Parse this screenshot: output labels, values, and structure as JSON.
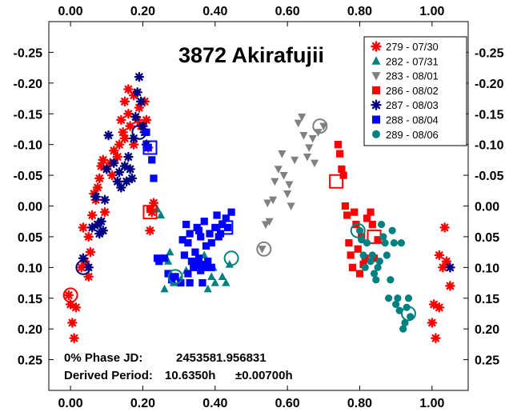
{
  "chart_data": {
    "type": "scatter",
    "title": "3872 Akirafujii",
    "xlabel": "",
    "ylabel": "",
    "xlim": [
      -0.06,
      1.1
    ],
    "ylim": [
      -0.3,
      0.3
    ],
    "y_inverted": true,
    "x_ticks": [
      "0.00",
      "0.20",
      "0.40",
      "0.60",
      "0.80",
      "1.00"
    ],
    "x_tick_values": [
      0.0,
      0.2,
      0.4,
      0.6,
      0.8,
      1.0
    ],
    "y_ticks": [
      "-0.25",
      "-0.20",
      "-0.15",
      "-0.10",
      "-0.05",
      "0.00",
      "0.05",
      "0.10",
      "0.15",
      "0.20",
      "0.25"
    ],
    "y_tick_values": [
      -0.25,
      -0.2,
      -0.15,
      -0.1,
      -0.05,
      0.0,
      0.05,
      0.1,
      0.15,
      0.2,
      0.25
    ],
    "grid": false,
    "legend_position": "top-right",
    "annotations": {
      "phase_label": "0% Phase JD:",
      "phase_value": "2453581.956831",
      "period_label": "Derived Period:",
      "period_value": "10.6350h",
      "period_error": "±0.00700h"
    },
    "series": [
      {
        "name": "279 - 07/30",
        "color": "#ff0000",
        "marker": "asterisk",
        "points": [
          [
            -0.005,
            0.145
          ],
          [
            0.0,
            0.16
          ],
          [
            0.005,
            0.19
          ],
          [
            0.01,
            0.215
          ],
          [
            0.015,
            0.165
          ],
          [
            0.03,
            0.1
          ],
          [
            0.035,
            0.035
          ],
          [
            0.04,
            0.09
          ],
          [
            0.05,
            0.05
          ],
          [
            0.05,
            0.115
          ],
          [
            0.055,
            0.075
          ],
          [
            0.06,
            0.015
          ],
          [
            0.065,
            -0.02
          ],
          [
            0.07,
            -0.01
          ],
          [
            0.075,
            -0.03
          ],
          [
            0.08,
            -0.045
          ],
          [
            0.085,
            -0.065
          ],
          [
            0.09,
            -0.075
          ],
          [
            0.095,
            0.01
          ],
          [
            0.1,
            -0.06
          ],
          [
            0.11,
            -0.07
          ],
          [
            0.115,
            -0.05
          ],
          [
            0.12,
            -0.09
          ],
          [
            0.13,
            -0.08
          ],
          [
            0.135,
            -0.1
          ],
          [
            0.14,
            -0.14
          ],
          [
            0.145,
            -0.12
          ],
          [
            0.15,
            -0.17
          ],
          [
            0.15,
            -0.11
          ],
          [
            0.16,
            -0.19
          ],
          [
            0.16,
            -0.15
          ],
          [
            0.165,
            -0.13
          ],
          [
            0.175,
            -0.18
          ],
          [
            0.175,
            -0.1
          ],
          [
            0.185,
            -0.14
          ],
          [
            0.19,
            -0.16
          ],
          [
            0.195,
            -0.13
          ],
          [
            0.205,
            -0.17
          ],
          [
            0.21,
            -0.14
          ],
          [
            0.215,
            -0.095
          ],
          [
            0.22,
            0.04
          ],
          [
            0.225,
            0.01
          ],
          [
            0.23,
            -0.005
          ],
          [
            1.0,
            0.19
          ],
          [
            1.005,
            0.16
          ],
          [
            1.01,
            0.215
          ],
          [
            1.02,
            0.165
          ],
          [
            1.02,
            0.08
          ],
          [
            1.03,
            0.1
          ],
          [
            1.035,
            0.035
          ],
          [
            1.04,
            0.09
          ],
          [
            1.05,
            0.13
          ]
        ],
        "highlight": [
          [
            0.0,
            0.145
          ]
        ]
      },
      {
        "name": "282 - 07/31",
        "color": "#008080",
        "marker": "triangle",
        "points": [
          [
            0.24,
            0.005
          ],
          [
            0.25,
            0.015
          ],
          [
            0.255,
            0.085
          ],
          [
            0.26,
            0.135
          ],
          [
            0.27,
            0.09
          ],
          [
            0.275,
            0.075
          ],
          [
            0.28,
            0.12
          ],
          [
            0.285,
            0.125
          ],
          [
            0.29,
            0.115
          ],
          [
            0.305,
            0.12
          ],
          [
            0.32,
            0.105
          ],
          [
            0.37,
            0.08
          ],
          [
            0.38,
            0.135
          ],
          [
            0.39,
            0.115
          ],
          [
            0.395,
            0.1
          ],
          [
            0.4,
            0.125
          ],
          [
            0.42,
            0.115
          ],
          [
            0.43,
            0.125
          ],
          [
            0.44,
            0.095
          ]
        ],
        "highlight": [
          [
            0.445,
            0.085
          ]
        ]
      },
      {
        "name": "283 - 08/01",
        "color": "#808080",
        "marker": "triangle-down",
        "points": [
          [
            0.53,
            0.07
          ],
          [
            0.54,
            0.03
          ],
          [
            0.545,
            -0.005
          ],
          [
            0.55,
            0.025
          ],
          [
            0.56,
            -0.01
          ],
          [
            0.565,
            -0.04
          ],
          [
            0.575,
            -0.06
          ],
          [
            0.585,
            -0.085
          ],
          [
            0.59,
            -0.05
          ],
          [
            0.6,
            -0.02
          ],
          [
            0.605,
            -0.035
          ],
          [
            0.61,
            0.0
          ],
          [
            0.62,
            -0.075
          ],
          [
            0.63,
            -0.135
          ],
          [
            0.64,
            -0.145
          ],
          [
            0.645,
            -0.115
          ],
          [
            0.655,
            -0.08
          ],
          [
            0.66,
            -0.095
          ],
          [
            0.67,
            -0.11
          ],
          [
            0.675,
            -0.07
          ],
          [
            0.685,
            -0.12
          ],
          [
            0.7,
            -0.13
          ]
        ],
        "highlight": [
          [
            0.535,
            0.07
          ],
          [
            0.69,
            -0.13
          ]
        ]
      },
      {
        "name": "286 - 08/02",
        "color": "#ff0000",
        "marker": "square",
        "points": [
          [
            0.22,
            0.005
          ],
          [
            0.74,
            -0.1
          ],
          [
            0.745,
            -0.085
          ],
          [
            0.75,
            -0.06
          ],
          [
            0.755,
            -0.05
          ],
          [
            0.76,
            0.0
          ],
          [
            0.765,
            0.015
          ],
          [
            0.77,
            0.06
          ],
          [
            0.775,
            0.08
          ],
          [
            0.78,
            0.1
          ],
          [
            0.785,
            0.01
          ],
          [
            0.79,
            0.03
          ],
          [
            0.795,
            0.07
          ],
          [
            0.8,
            0.11
          ],
          [
            0.805,
            0.05
          ],
          [
            0.81,
            0.095
          ],
          [
            0.815,
            0.085
          ],
          [
            0.82,
            0.02
          ],
          [
            0.83,
            0.01
          ],
          [
            0.835,
            0.03
          ],
          [
            0.84,
            0.085
          ],
          [
            0.85,
            0.055
          ]
        ],
        "highlight": [
          [
            0.22,
            0.01
          ],
          [
            0.735,
            -0.04
          ],
          [
            0.84,
            0.05
          ]
        ]
      },
      {
        "name": "287 - 08/03",
        "color": "#000080",
        "marker": "asterisk",
        "points": [
          [
            0.035,
            0.085
          ],
          [
            0.05,
            0.1
          ],
          [
            0.06,
            0.035
          ],
          [
            0.07,
            -0.015
          ],
          [
            0.075,
            0.03
          ],
          [
            0.08,
            0.045
          ],
          [
            0.085,
            0.025
          ],
          [
            0.09,
            0.04
          ],
          [
            0.095,
            -0.01
          ],
          [
            0.1,
            -0.06
          ],
          [
            0.105,
            -0.115
          ],
          [
            0.12,
            -0.07
          ],
          [
            0.13,
            -0.04
          ],
          [
            0.135,
            -0.055
          ],
          [
            0.14,
            -0.03
          ],
          [
            0.15,
            -0.065
          ],
          [
            0.155,
            -0.04
          ],
          [
            0.16,
            -0.08
          ],
          [
            0.165,
            -0.06
          ],
          [
            0.17,
            -0.045
          ],
          [
            0.175,
            -0.11
          ],
          [
            0.18,
            -0.145
          ],
          [
            0.185,
            -0.185
          ],
          [
            0.19,
            -0.21
          ],
          [
            0.195,
            -0.17
          ],
          [
            0.2,
            -0.13
          ],
          [
            0.205,
            -0.12
          ],
          [
            0.21,
            -0.1
          ],
          [
            1.05,
            0.1
          ]
        ],
        "highlight": [
          [
            0.035,
            0.1
          ],
          [
            0.19,
            -0.12
          ]
        ]
      },
      {
        "name": "288 - 08/04",
        "color": "#0000ff",
        "marker": "square",
        "points": [
          [
            0.21,
            -0.12
          ],
          [
            0.215,
            -0.095
          ],
          [
            0.225,
            -0.075
          ],
          [
            0.23,
            -0.045
          ],
          [
            0.26,
            0.085
          ],
          [
            0.27,
            0.11
          ],
          [
            0.28,
            0.12
          ],
          [
            0.29,
            0.115
          ],
          [
            0.305,
            0.125
          ],
          [
            0.315,
            0.08
          ],
          [
            0.325,
            0.11
          ],
          [
            0.33,
            0.125
          ],
          [
            0.335,
            0.09
          ],
          [
            0.34,
            0.1
          ],
          [
            0.35,
            0.095
          ],
          [
            0.355,
            0.085
          ],
          [
            0.36,
            0.105
          ],
          [
            0.365,
            0.125
          ],
          [
            0.37,
            0.095
          ],
          [
            0.375,
            0.1
          ],
          [
            0.38,
            0.09
          ],
          [
            0.39,
            0.1
          ],
          [
            0.31,
            0.055
          ],
          [
            0.32,
            0.03
          ],
          [
            0.325,
            0.06
          ],
          [
            0.33,
            0.045
          ],
          [
            0.345,
            0.075
          ],
          [
            0.35,
            0.035
          ],
          [
            0.355,
            0.04
          ],
          [
            0.36,
            0.05
          ],
          [
            0.37,
            0.025
          ],
          [
            0.375,
            0.065
          ],
          [
            0.385,
            0.045
          ],
          [
            0.39,
            0.06
          ],
          [
            0.4,
            0.035
          ],
          [
            0.405,
            0.015
          ],
          [
            0.41,
            0.05
          ],
          [
            0.415,
            0.045
          ],
          [
            0.42,
            0.03
          ],
          [
            0.43,
            0.02
          ],
          [
            0.435,
            0.035
          ],
          [
            0.445,
            0.01
          ],
          [
            0.24,
            0.085
          ],
          [
            0.245,
            0.09
          ]
        ],
        "highlight": [
          [
            0.22,
            -0.095
          ],
          [
            0.43,
            0.035
          ]
        ]
      },
      {
        "name": "289 - 08/06",
        "color": "#008080",
        "marker": "circle",
        "points": [
          [
            0.8,
            0.04
          ],
          [
            0.805,
            0.055
          ],
          [
            0.81,
            0.08
          ],
          [
            0.815,
            0.1
          ],
          [
            0.82,
            0.06
          ],
          [
            0.83,
            0.09
          ],
          [
            0.835,
            0.08
          ],
          [
            0.84,
            0.11
          ],
          [
            0.845,
            0.12
          ],
          [
            0.85,
            0.1
          ],
          [
            0.855,
            0.09
          ],
          [
            0.86,
            0.03
          ],
          [
            0.865,
            0.05
          ],
          [
            0.87,
            0.06
          ],
          [
            0.875,
            0.08
          ],
          [
            0.88,
            0.15
          ],
          [
            0.885,
            0.12
          ],
          [
            0.89,
            0.04
          ],
          [
            0.895,
            0.06
          ],
          [
            0.9,
            0.16
          ],
          [
            0.905,
            0.15
          ],
          [
            0.91,
            0.17
          ],
          [
            0.915,
            0.06
          ],
          [
            0.92,
            0.2
          ],
          [
            0.925,
            0.19
          ],
          [
            0.93,
            0.165
          ],
          [
            0.935,
            0.15
          ],
          [
            0.94,
            0.18
          ]
        ],
        "highlight": [
          [
            0.795,
            0.04
          ],
          [
            0.29,
            0.115
          ],
          [
            0.935,
            0.175
          ]
        ]
      }
    ]
  }
}
